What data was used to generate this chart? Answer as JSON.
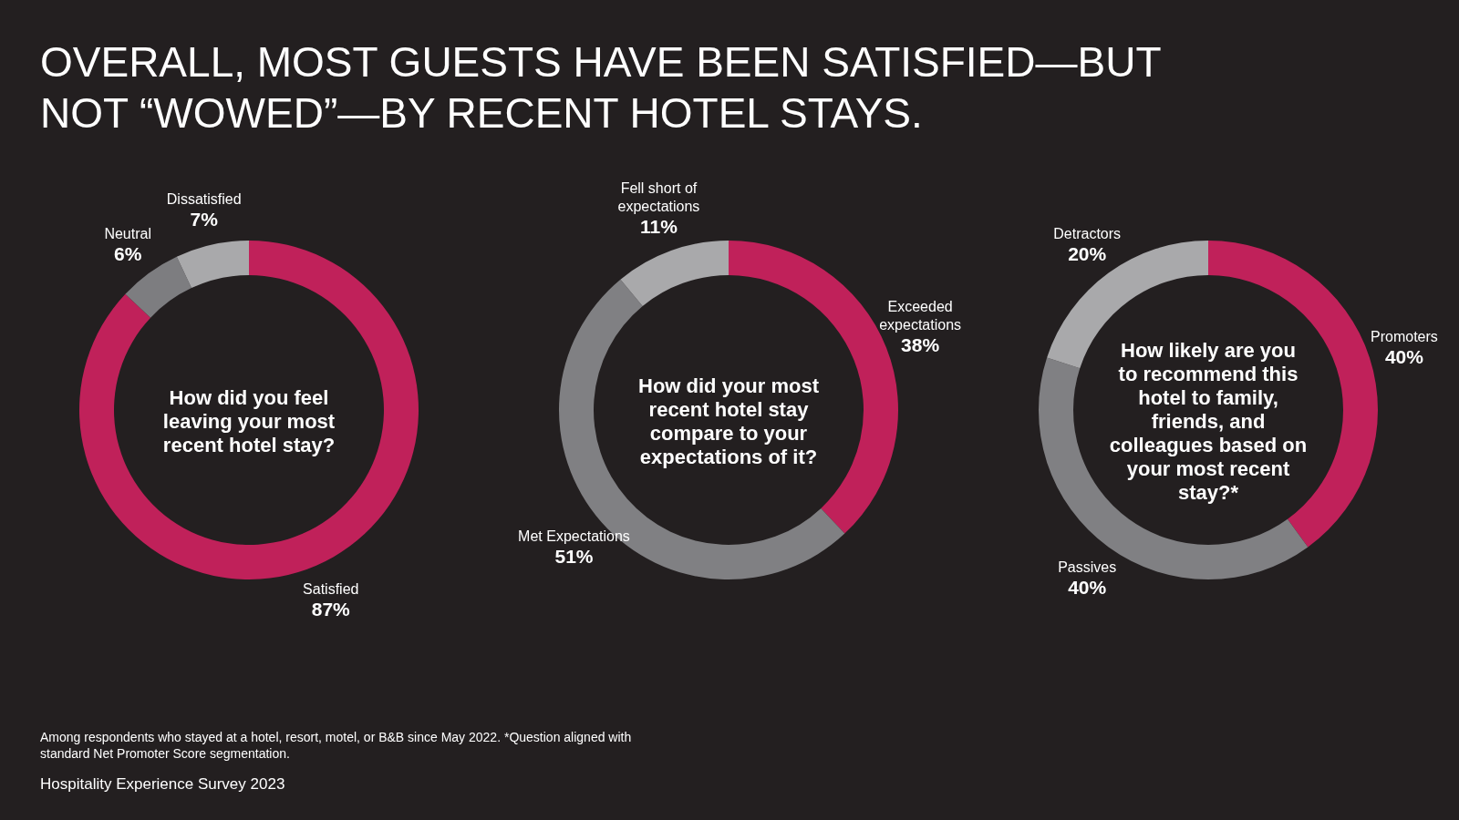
{
  "chart_data": [
    {
      "type": "other",
      "title": "OVERALL, MOST GUESTS HAVE BEEN SATISFIED—BUT NOT “WOWED”—BY RECENT HOTEL STAYS.",
      "annotations": [
        "Among respondents who stayed at a hotel, resort, motel, or B&B since May 2022. *Question aligned with standard Net Promoter Score segmentation.",
        "Hospitality Experience Survey 2023"
      ]
    },
    {
      "type": "donut",
      "title": "How did you feel leaving your most recent hotel stay?",
      "categories": [
        "Satisfied",
        "Neutral",
        "Dissatisfied"
      ],
      "values": [
        87,
        6,
        7
      ],
      "value_labels": [
        "87%",
        "6%",
        "7%"
      ],
      "colors": [
        "#c0215a",
        "#7d7d80",
        "#a9a9ab"
      ],
      "legend": false
    },
    {
      "type": "donut",
      "title": "How did your most recent hotel stay compare to your expectations of it?",
      "categories": [
        "Exceeded expectations",
        "Met Expectations",
        "Fell short of expectations"
      ],
      "values": [
        38,
        51,
        11
      ],
      "value_labels": [
        "38%",
        "51%",
        "11%"
      ],
      "colors": [
        "#c0215a",
        "#808083",
        "#a9a9ab"
      ],
      "legend": false
    },
    {
      "type": "donut",
      "title": "How likely are you to recommend this hotel to family, friends, and colleagues based on your most recent stay?*",
      "categories": [
        "Promoters",
        "Passives",
        "Detractors"
      ],
      "values": [
        40,
        40,
        20
      ],
      "value_labels": [
        "40%",
        "40%",
        "20%"
      ],
      "colors": [
        "#c0215a",
        "#808083",
        "#a9a9ab"
      ],
      "legend": false
    }
  ]
}
